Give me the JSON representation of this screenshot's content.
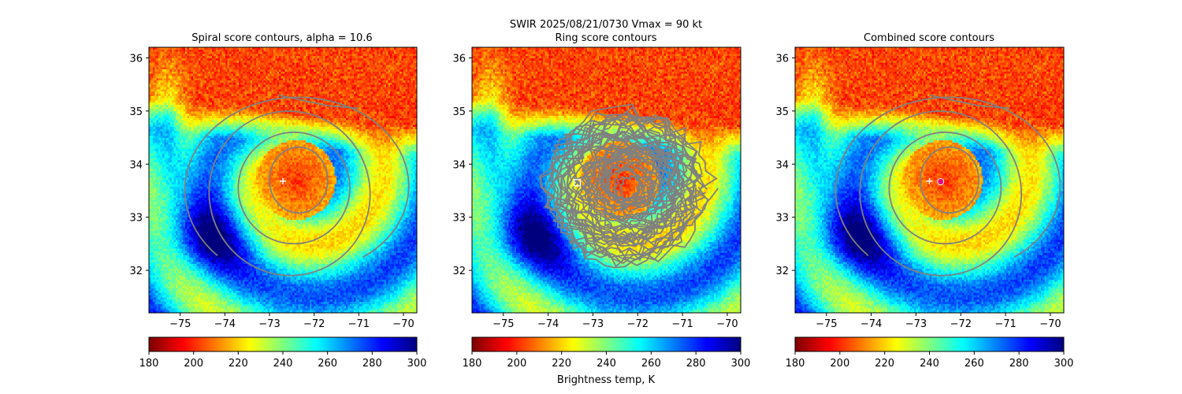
{
  "figure": {
    "suptitle_line1": "SWIR  2025/08/21/0730    Vmax = 90 kt",
    "colorbar_label": "Brightness temp, K"
  },
  "colors": {
    "contour": "#808080",
    "marker_fill": "#e6007e"
  },
  "chart_data": [
    {
      "type": "heatmap",
      "title": "Spiral score contours, alpha = 10.6",
      "xlabel": "",
      "ylabel": "",
      "xlim": [
        -75.7,
        -69.7
      ],
      "ylim": [
        31.2,
        36.2
      ],
      "xticks": [
        -75,
        -74,
        -73,
        -72,
        -71,
        -70
      ],
      "xtick_labels": [
        "−75",
        "−74",
        "−73",
        "−72",
        "−71",
        "−70"
      ],
      "yticks": [
        32,
        33,
        34,
        35,
        36
      ],
      "ytick_labels": [
        "32",
        "33",
        "34",
        "35",
        "36"
      ],
      "colorbar": {
        "range": [
          180,
          300
        ],
        "ticks": [
          180,
          200,
          220,
          240,
          260,
          280,
          300
        ],
        "tick_labels": [
          "180",
          "200",
          "220",
          "240",
          "260",
          "280",
          "300"
        ],
        "colormap": "jet_r"
      },
      "markers": [
        {
          "kind": "plus",
          "lon": -72.7,
          "lat": 33.68,
          "color": "#ffffff"
        }
      ],
      "contours": "spiral"
    },
    {
      "type": "heatmap",
      "title": "Ring score contours",
      "xlabel": "",
      "ylabel": "",
      "xlim": [
        -75.7,
        -69.7
      ],
      "ylim": [
        31.2,
        36.2
      ],
      "xticks": [
        -75,
        -74,
        -73,
        -72,
        -71,
        -70
      ],
      "xtick_labels": [
        "−75",
        "−74",
        "−73",
        "−72",
        "−71",
        "−70"
      ],
      "yticks": [
        32,
        33,
        34,
        35,
        36
      ],
      "ytick_labels": [
        "32",
        "33",
        "34",
        "35",
        "36"
      ],
      "colorbar": {
        "range": [
          180,
          300
        ],
        "ticks": [
          180,
          200,
          220,
          240,
          260,
          280,
          300
        ],
        "tick_labels": [
          "180",
          "200",
          "220",
          "240",
          "260",
          "280",
          "300"
        ],
        "colormap": "jet_r"
      },
      "markers": [
        {
          "kind": "square",
          "lon": -73.35,
          "lat": 33.65,
          "color": "#ffffff"
        }
      ],
      "contours": "ring"
    },
    {
      "type": "heatmap",
      "title": "Combined score contours",
      "xlabel": "",
      "ylabel": "",
      "xlim": [
        -75.7,
        -69.7
      ],
      "ylim": [
        31.2,
        36.2
      ],
      "xticks": [
        -75,
        -74,
        -73,
        -72,
        -71,
        -70
      ],
      "xtick_labels": [
        "−75",
        "−74",
        "−73",
        "−72",
        "−71",
        "−70"
      ],
      "yticks": [
        32,
        33,
        34,
        35,
        36
      ],
      "ytick_labels": [
        "32",
        "33",
        "34",
        "35",
        "36"
      ],
      "colorbar": {
        "range": [
          180,
          300
        ],
        "ticks": [
          180,
          200,
          220,
          240,
          260,
          280,
          300
        ],
        "tick_labels": [
          "180",
          "200",
          "220",
          "240",
          "260",
          "280",
          "300"
        ],
        "colormap": "jet_r"
      },
      "markers": [
        {
          "kind": "plus",
          "lon": -72.7,
          "lat": 33.68,
          "color": "#ffffff"
        },
        {
          "kind": "circle",
          "lon": -72.45,
          "lat": 33.67,
          "color": "#e6007e"
        }
      ],
      "contours": "combined"
    }
  ]
}
